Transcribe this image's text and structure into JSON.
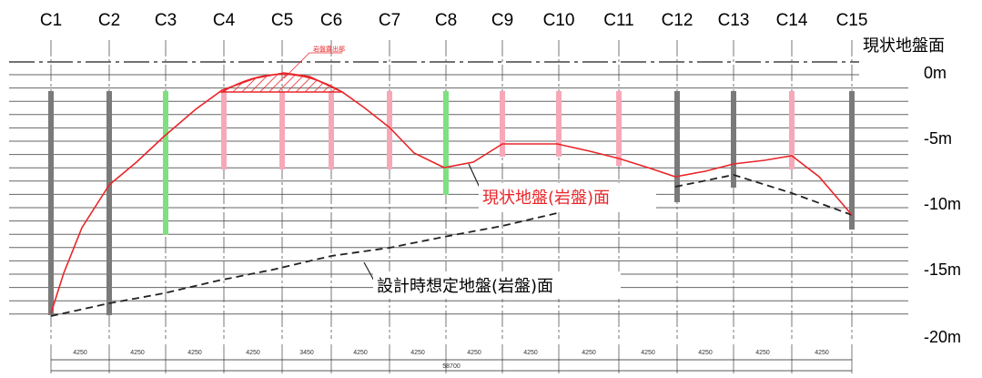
{
  "columns": [
    "C1",
    "C2",
    "C3",
    "C4",
    "C5",
    "C6",
    "C7",
    "C8",
    "C9",
    "C10",
    "C11",
    "C12",
    "C13",
    "C14",
    "C15"
  ],
  "ground_surface_label": "現状地盤面",
  "depth_labels": [
    "0m",
    "-5m",
    "-10m",
    "-15m",
    "-20m"
  ],
  "actual_rock_label": "現状地盤(岩盤)面",
  "design_rock_label": "設計時想定地盤(岩盤)面",
  "small_note": "岩盤露出部",
  "span_dimensions": [
    "4250",
    "4250",
    "4250",
    "4250",
    "3450",
    "4250",
    "4250",
    "4250",
    "4250",
    "4250",
    "4250",
    "4250",
    "4250",
    "4250"
  ],
  "total_dimension": "58700",
  "colors": {
    "actual_rock": "#e8262a",
    "design_rock": "#222222",
    "grid": "#555555",
    "pile_gray": "#7a7a7a",
    "pile_green": "#7fe07f",
    "pile_pink": "#f7a8b8"
  }
}
